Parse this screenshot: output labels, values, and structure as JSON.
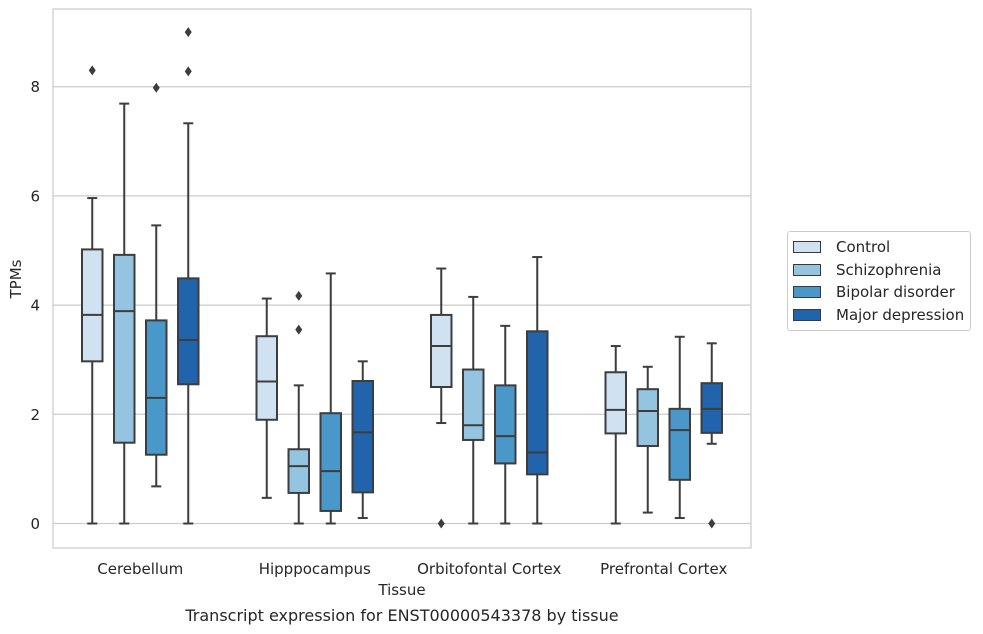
{
  "chart_data": {
    "type": "box",
    "title": "Transcript expression for ENST00000543378 by tissue",
    "xlabel": "Tissue",
    "ylabel": "TPMs",
    "ylim": [
      -0.45,
      9.7
    ],
    "yticks": [
      0,
      2,
      4,
      6,
      8
    ],
    "grid": "horizontal",
    "legend_position": "right",
    "categories": [
      "Cerebellum",
      "Hipppocampus",
      "Orbitofontal Cortex",
      "Prefrontal Cortex"
    ],
    "series": [
      {
        "name": "Control",
        "color": "#d0e1f2",
        "boxes": [
          {
            "min": 0,
            "q1": 2.97,
            "median": 3.82,
            "q3": 5.02,
            "max": 5.96,
            "outliers": [
              8.3
            ]
          },
          {
            "min": 0.47,
            "q1": 1.9,
            "median": 2.6,
            "q3": 3.43,
            "max": 4.12,
            "outliers": []
          },
          {
            "min": 1.84,
            "q1": 2.5,
            "median": 3.25,
            "q3": 3.82,
            "max": 4.67,
            "outliers": [
              0
            ]
          },
          {
            "min": 0,
            "q1": 1.65,
            "median": 2.08,
            "q3": 2.77,
            "max": 3.25,
            "outliers": []
          }
        ]
      },
      {
        "name": "Schizophrenia",
        "color": "#94c4df",
        "boxes": [
          {
            "min": 0,
            "q1": 1.48,
            "median": 3.89,
            "q3": 4.92,
            "max": 7.69,
            "outliers": []
          },
          {
            "min": 0,
            "q1": 0.56,
            "median": 1.05,
            "q3": 1.36,
            "max": 2.53,
            "outliers": [
              3.55,
              4.17
            ]
          },
          {
            "min": 0,
            "q1": 1.53,
            "median": 1.8,
            "q3": 2.82,
            "max": 4.15,
            "outliers": []
          },
          {
            "min": 0.2,
            "q1": 1.42,
            "median": 2.06,
            "q3": 2.46,
            "max": 2.87,
            "outliers": []
          }
        ]
      },
      {
        "name": "Bipolar disorder",
        "color": "#4a98c9",
        "boxes": [
          {
            "min": 0.68,
            "q1": 1.26,
            "median": 2.3,
            "q3": 3.72,
            "max": 5.46,
            "outliers": [
              7.98
            ]
          },
          {
            "min": 0,
            "q1": 0.23,
            "median": 0.96,
            "q3": 2.02,
            "max": 4.58,
            "outliers": []
          },
          {
            "min": 0,
            "q1": 1.1,
            "median": 1.6,
            "q3": 2.53,
            "max": 3.62,
            "outliers": []
          },
          {
            "min": 0.1,
            "q1": 0.8,
            "median": 1.71,
            "q3": 2.1,
            "max": 3.42,
            "outliers": []
          }
        ]
      },
      {
        "name": "Major depression",
        "color": "#2164ab",
        "boxes": [
          {
            "min": 0,
            "q1": 2.55,
            "median": 3.36,
            "q3": 4.49,
            "max": 7.33,
            "outliers": [
              8.28,
              9.0
            ]
          },
          {
            "min": 0.1,
            "q1": 0.57,
            "median": 1.67,
            "q3": 2.61,
            "max": 2.97,
            "outliers": []
          },
          {
            "min": 0,
            "q1": 0.9,
            "median": 1.3,
            "q3": 3.52,
            "max": 4.88,
            "outliers": []
          },
          {
            "min": 1.46,
            "q1": 1.66,
            "median": 2.1,
            "q3": 2.57,
            "max": 3.3,
            "outliers": [
              0
            ]
          }
        ]
      }
    ]
  }
}
